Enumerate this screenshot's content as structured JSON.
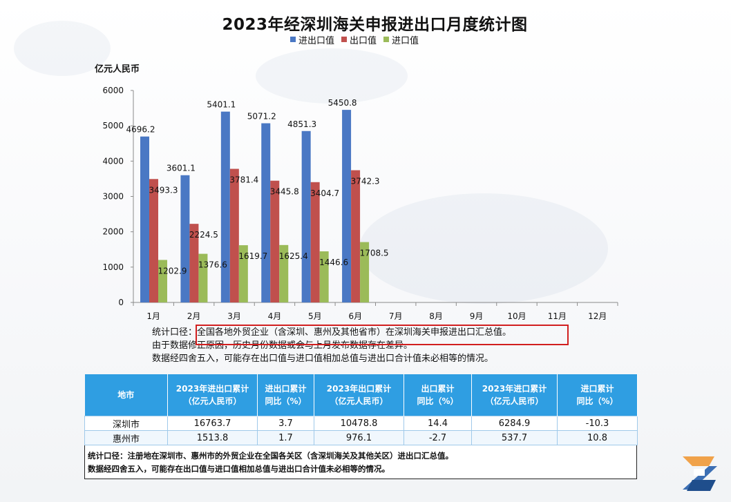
{
  "page": {
    "title": "2023年经深圳海关申报进出口月度统计图"
  },
  "colors": {
    "total": "#4a78c4",
    "export": "#c0504d",
    "import": "#9bbb59",
    "table_header": "#2f9ee2",
    "highlight_border": "#d11e1e"
  },
  "chart_data": {
    "type": "bar",
    "title": "2023年经深圳海关申报进出口月度统计图",
    "ylabel": "亿元人民币",
    "xlabel": "",
    "ylim": [
      0,
      6000
    ],
    "yticks": [
      0,
      1000,
      2000,
      3000,
      4000,
      5000,
      6000
    ],
    "grid": false,
    "legend_position": "top",
    "categories": [
      "1月",
      "2月",
      "3月",
      "4月",
      "5月",
      "6月",
      "7月",
      "8月",
      "9月",
      "10月",
      "11月",
      "12月"
    ],
    "series": [
      {
        "name": "进出口值",
        "color": "#4a78c4",
        "values": [
          4696.2,
          3601.1,
          5401.1,
          5071.2,
          4851.3,
          5450.8,
          null,
          null,
          null,
          null,
          null,
          null
        ]
      },
      {
        "name": "出口值",
        "color": "#c0504d",
        "values": [
          3493.3,
          2224.5,
          3781.4,
          3445.8,
          3404.7,
          3742.3,
          null,
          null,
          null,
          null,
          null,
          null
        ]
      },
      {
        "name": "进口值",
        "color": "#9bbb59",
        "values": [
          1202.9,
          1376.6,
          1619.7,
          1625.4,
          1446.6,
          1708.5,
          null,
          null,
          null,
          null,
          null,
          null
        ]
      }
    ]
  },
  "notes": {
    "line1_prefix": "统计口径：",
    "line1_highlight": "全国各地外贸企业（含深圳、惠州及其他省市）在深圳海关申报进出口汇总值。",
    "line2": "由于数据修正原因，历史月份数据或会与上月发布数据存在差异。",
    "line3": "数据经四舍五入，可能存在出口值与进口值相加总值与进出口合计值未必相等的情况。"
  },
  "table": {
    "headers": [
      [
        "地市"
      ],
      [
        "2023年进出口累计",
        "（亿元人民币）"
      ],
      [
        "进出口累计",
        "同比（%）"
      ],
      [
        "2023年出口累计",
        "（亿元人民币）"
      ],
      [
        "出口累计",
        "同比（%）"
      ],
      [
        "2023年进口累计",
        "（亿元人民币）"
      ],
      [
        "进口累计",
        "同比（%）"
      ]
    ],
    "rows": [
      [
        "深圳市",
        "16763.7",
        "3.7",
        "10478.8",
        "14.4",
        "6284.9",
        "-10.3"
      ],
      [
        "惠州市",
        "1513.8",
        "1.7",
        "976.1",
        "-2.7",
        "537.7",
        "10.8"
      ]
    ],
    "notes": [
      "统计口径：注册地在深圳市、惠州市的外贸企业在全国各关区（含深圳海关及其他关区）进出口汇总值。",
      "数据经四舍五入，可能存在出口值与进口值相加总值与进出口合计值未必相等的情况。"
    ]
  },
  "logo": {
    "icon": "z-logo-icon"
  }
}
